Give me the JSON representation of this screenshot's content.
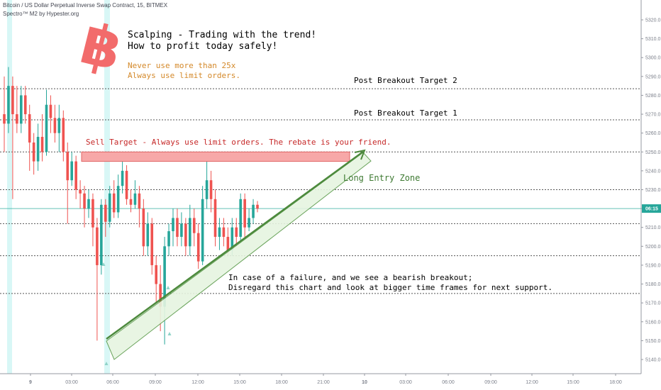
{
  "header": {
    "symbol_line": "Bitcoin / US Dollar Perpetual Inverse Swap Contract, 15, BITMEX",
    "indicator_line": "Spectro™ M2 by Hypester.org"
  },
  "annotations": {
    "title_line1": "Scalping - Trading with the trend!",
    "title_line2": "How to profit today safely!",
    "warn_line1": "Never use more than 25x",
    "warn_line2": "Always use limit orders.",
    "target2": "Post Breakout Target 2",
    "target1": "Post Breakout Target 1",
    "sell_target": "Sell Target - Always use limit orders. The rebate is your friend.",
    "long_zone": "Long Entry Zone",
    "failure_line1": "In case of a failure, and we see a bearish breakout;",
    "failure_line2": "Disregard this chart and look at bigger time frames for next support."
  },
  "colors": {
    "up": "#26a69a",
    "down": "#ef5350",
    "current_price_line": "#26a69a",
    "logo": "#f26b6b",
    "warn_text": "#d4892a",
    "sell_text": "#c62828",
    "zone_stroke": "#5a9a4a",
    "zone_fill": "#e6f4e0"
  },
  "chart_data": {
    "type": "candlestick",
    "symbol": "Bitcoin / US Dollar Perpetual Inverse Swap Contract",
    "timeframe": "15",
    "exchange": "BITMEX",
    "ylim": [
      5135,
      5330
    ],
    "y_ticks": [
      5140,
      5150,
      5160,
      5170,
      5180,
      5190,
      5200,
      5210,
      5220,
      5230,
      5240,
      5250,
      5260,
      5270,
      5280,
      5290,
      5300,
      5310,
      5320
    ],
    "x_ticks": [
      "9",
      "03:00",
      "06:00",
      "09:00",
      "12:00",
      "15:00",
      "18:00",
      "21:00",
      "10",
      "03:00",
      "06:00",
      "09:00",
      "12:00",
      "15:00",
      "18:00"
    ],
    "current_price_label": "06:15",
    "current_price": 5220,
    "horizontal_levels": [
      5283.5,
      5267,
      5250,
      5230,
      5212,
      5195,
      5175
    ],
    "sell_target_zone": [
      5245,
      5250
    ],
    "candles": [
      [
        5270,
        5265,
        5290,
        5250
      ],
      [
        5265,
        5285,
        5295,
        5260
      ],
      [
        5285,
        5270,
        5290,
        5225
      ],
      [
        5270,
        5265,
        5285,
        5260
      ],
      [
        5265,
        5280,
        5285,
        5260
      ],
      [
        5280,
        5270,
        5285,
        5265
      ],
      [
        5270,
        5255,
        5275,
        5240
      ],
      [
        5255,
        5245,
        5260,
        5238
      ],
      [
        5245,
        5258,
        5265,
        5240
      ],
      [
        5258,
        5250,
        5270,
        5245
      ],
      [
        5250,
        5275,
        5283,
        5248
      ],
      [
        5275,
        5268,
        5280,
        5260
      ],
      [
        5268,
        5260,
        5275,
        5255
      ],
      [
        5260,
        5268,
        5275,
        5250
      ],
      [
        5268,
        5250,
        5272,
        5245
      ],
      [
        5250,
        5235,
        5255,
        5212
      ],
      [
        5235,
        5245,
        5250,
        5232
      ],
      [
        5245,
        5230,
        5248,
        5225
      ],
      [
        5230,
        5228,
        5235,
        5220
      ],
      [
        5228,
        5220,
        5232,
        5210
      ],
      [
        5220,
        5225,
        5230,
        5215
      ],
      [
        5225,
        5210,
        5228,
        5200
      ],
      [
        5210,
        5190,
        5215,
        5150
      ],
      [
        5190,
        5222,
        5225,
        5185
      ],
      [
        5222,
        5213,
        5225,
        5205
      ],
      [
        5213,
        5228,
        5232,
        5210
      ],
      [
        5228,
        5218,
        5235,
        5215
      ],
      [
        5218,
        5232,
        5238,
        5215
      ],
      [
        5232,
        5240,
        5245,
        5228
      ],
      [
        5240,
        5225,
        5243,
        5222
      ],
      [
        5225,
        5222,
        5230,
        5218
      ],
      [
        5222,
        5228,
        5235,
        5220
      ],
      [
        5228,
        5220,
        5232,
        5210
      ],
      [
        5220,
        5200,
        5225,
        5195
      ],
      [
        5200,
        5212,
        5218,
        5195
      ],
      [
        5212,
        5190,
        5215,
        5185
      ],
      [
        5190,
        5180,
        5195,
        5170
      ],
      [
        5180,
        5168,
        5190,
        5155
      ],
      [
        5168,
        5200,
        5205,
        5148
      ],
      [
        5200,
        5208,
        5212,
        5195
      ],
      [
        5208,
        5215,
        5220,
        5200
      ],
      [
        5215,
        5205,
        5220,
        5200
      ],
      [
        5205,
        5212,
        5218,
        5200
      ],
      [
        5212,
        5200,
        5215,
        5195
      ],
      [
        5200,
        5215,
        5222,
        5195
      ],
      [
        5215,
        5207,
        5220,
        5200
      ],
      [
        5207,
        5192,
        5212,
        5188
      ],
      [
        5192,
        5225,
        5232,
        5190
      ],
      [
        5225,
        5235,
        5250,
        5220
      ],
      [
        5235,
        5225,
        5240,
        5218
      ],
      [
        5225,
        5205,
        5230,
        5200
      ],
      [
        5205,
        5210,
        5215,
        5198
      ],
      [
        5210,
        5205,
        5215,
        5200
      ],
      [
        5205,
        5198,
        5210,
        5195
      ],
      [
        5198,
        5210,
        5215,
        5195
      ],
      [
        5210,
        5205,
        5215,
        5200
      ],
      [
        5205,
        5225,
        5228,
        5202
      ],
      [
        5225,
        5210,
        5228,
        5205
      ],
      [
        5210,
        5215,
        5220,
        5208
      ],
      [
        5215,
        5222,
        5225,
        5212
      ],
      [
        5222,
        5220,
        5224,
        5218
      ]
    ]
  }
}
